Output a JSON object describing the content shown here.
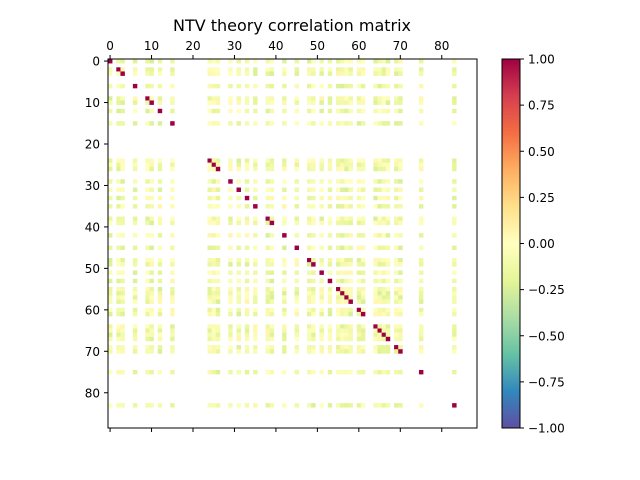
{
  "chart_data": {
    "type": "heatmap",
    "title": "NTV theory correlation matrix",
    "size": 89,
    "x_ticks": [
      0,
      10,
      20,
      30,
      40,
      50,
      60,
      70,
      80
    ],
    "y_ticks": [
      0,
      10,
      20,
      30,
      40,
      50,
      60,
      70,
      80
    ],
    "x_tick_position": "top",
    "colormap": "Spectral_r",
    "vmin": -1.0,
    "vmax": 1.0,
    "colorbar_ticks": [
      -1.0,
      -0.75,
      -0.5,
      -0.25,
      0.0,
      0.25,
      0.5,
      0.75,
      1.0
    ],
    "colorbar_tick_labels": [
      "−1.00",
      "−0.75",
      "−0.50",
      "−0.25",
      "0.00",
      "0.25",
      "0.50",
      "0.75",
      "1.00"
    ],
    "active_indices": [
      0,
      2,
      3,
      6,
      9,
      10,
      12,
      15,
      24,
      25,
      26,
      29,
      31,
      33,
      35,
      38,
      39,
      42,
      45,
      48,
      49,
      51,
      53,
      55,
      56,
      57,
      58,
      60,
      61,
      64,
      65,
      66,
      67,
      69,
      70,
      75,
      83
    ],
    "diagonal_value": 1.0,
    "off_diagonal_value_range": [
      -0.25,
      0.1
    ],
    "grid": false
  }
}
